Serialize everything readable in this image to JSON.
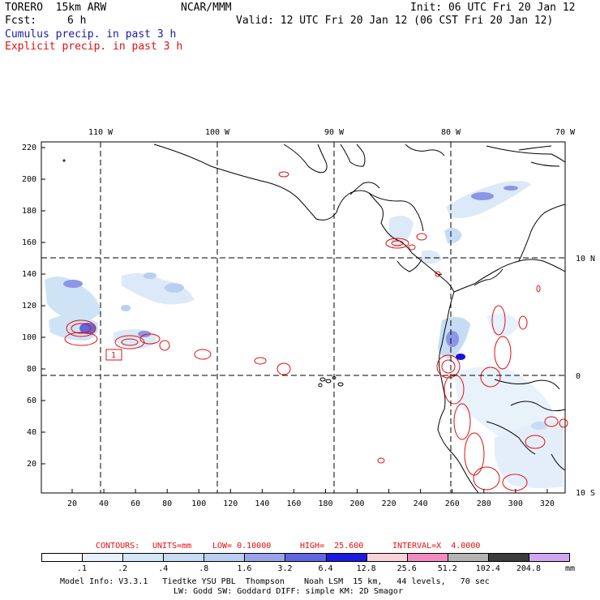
{
  "header": {
    "model": "TORERO  15km ARW",
    "org": "NCAR/MMM",
    "init": "Init: 06 UTC Fri 20 Jan 12",
    "fcst_label": "Fcst:",
    "fcst_hours": "6 h",
    "valid": "Valid: 12 UTC Fri 20 Jan 12 (06 CST Fri 20 Jan 12)",
    "cumulus": "Cumulus precip. in past 3 h",
    "explicit": "Explicit precip. in past 3 h"
  },
  "map": {
    "top_lon_labels": [
      "110 W",
      "100 W",
      "90 W",
      "80 W",
      "70 W"
    ],
    "right_lat_labels": [
      "10 N",
      "0",
      "10 S"
    ],
    "y_ticks": [
      "220",
      "200",
      "180",
      "160",
      "140",
      "120",
      "100",
      "80",
      "60",
      "40",
      "20"
    ],
    "x_ticks": [
      "20",
      "40",
      "60",
      "80",
      "100",
      "120",
      "140",
      "160",
      "180",
      "200",
      "220",
      "240",
      "260",
      "280",
      "300",
      "320"
    ],
    "marker_label": "1",
    "colors": {
      "coast": "#000000",
      "contour": "#e01010",
      "precip_light": "#cfe3f6",
      "precip_mid": "#8c95e6",
      "precip_strong": "#4b55d8",
      "precip_heavy": "#1414e0"
    }
  },
  "contours_info": {
    "label": "CONTOURS:",
    "units": "UNITS=mm",
    "low": "LOW= 0.10000",
    "high": "HIGH=  25.600",
    "interval": "INTERVAL=X  4.0000"
  },
  "legend": {
    "labels": [
      ".1",
      ".2",
      ".4",
      ".8",
      "1.6",
      "3.2",
      "6.4",
      "12.8",
      "25.6",
      "51.2",
      "102.4",
      "204.8"
    ],
    "unit": "mm",
    "colors": [
      "#ffffff",
      "#e6f1fb",
      "#d3e7f7",
      "#c6dcf4",
      "#b9cff1",
      "#9aa3ea",
      "#6068e0",
      "#1a1ae0",
      "#fad2da",
      "#f08cc0",
      "#b4b4b4",
      "#3c3c3c",
      "#d0a8f0"
    ]
  },
  "footer": {
    "line1": "Model Info: V3.3.1   Tiedtke YSU PBL  Thompson    Noah LSM  15 km,   44 levels,   70 sec",
    "line2": "LW: Godd SW: Goddard DIFF: simple KM: 2D Smagor"
  }
}
